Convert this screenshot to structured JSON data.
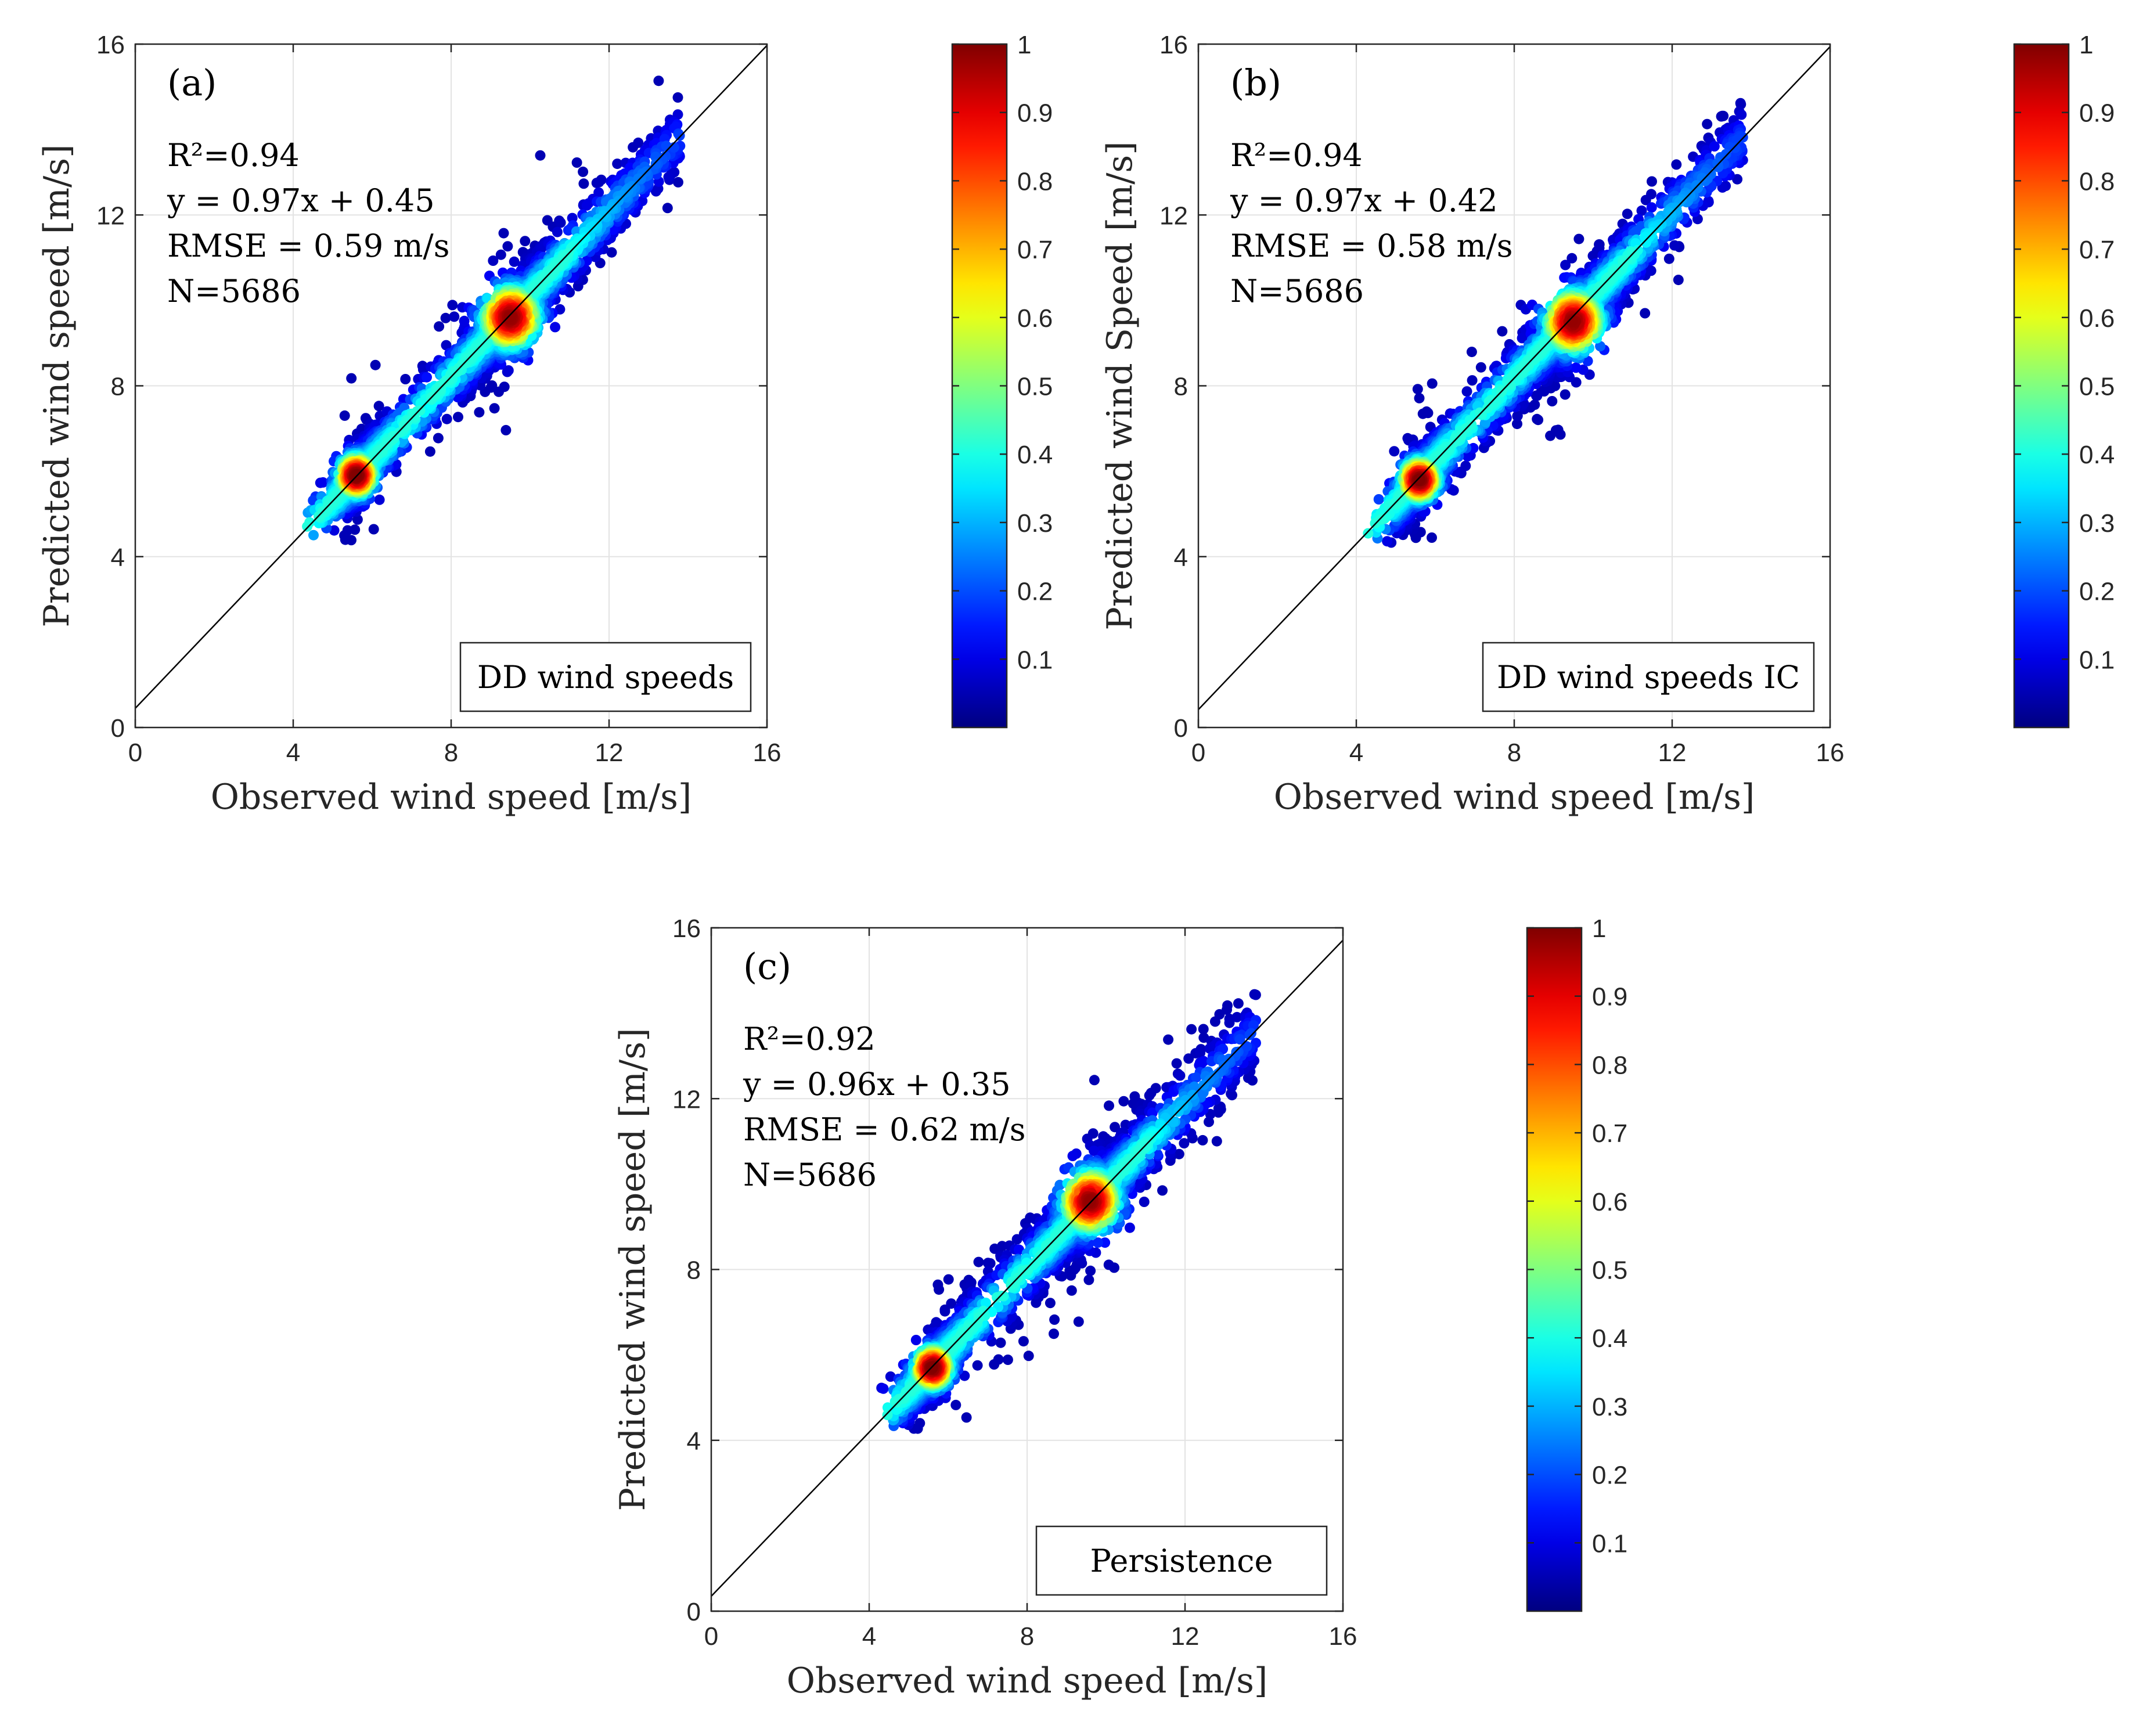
{
  "chart_data": [
    {
      "type": "scatter",
      "panel_label": "(a)",
      "xlabel": "Observed wind speed [m/s]",
      "ylabel": "Predicted wind speed [m/s]",
      "xlim": [
        0,
        16
      ],
      "ylim": [
        0,
        16
      ],
      "xticks": [
        "0",
        "4",
        "8",
        "12",
        "16"
      ],
      "yticks": [
        "0",
        "4",
        "8",
        "12",
        "16"
      ],
      "grid": true,
      "stats": [
        "R²=0.94",
        "y = 0.97x + 0.45",
        "RMSE = 0.59 m/s",
        "N=5686"
      ],
      "legend": "DD wind speeds",
      "legend_placement": "bottom-right",
      "fit": {
        "slope": 0.97,
        "intercept": 0.45
      },
      "n": 5686,
      "clusters": [
        {
          "center": [
            5.6,
            5.9
          ],
          "weight": 0.4
        },
        {
          "center": [
            9.5,
            9.6
          ],
          "weight": 0.45
        }
      ],
      "point_range_x": [
        4.2,
        15.3
      ],
      "colorbar": {
        "min": 0,
        "max": 1,
        "ticks": [
          "0.1",
          "0.2",
          "0.3",
          "0.4",
          "0.5",
          "0.6",
          "0.7",
          "0.8",
          "0.9",
          "1"
        ],
        "colormap": "jet"
      }
    },
    {
      "type": "scatter",
      "panel_label": "(b)",
      "xlabel": "Observed wind speed [m/s]",
      "ylabel": "Predicted wind Speed [m/s]",
      "xlim": [
        0,
        16
      ],
      "ylim": [
        0,
        16
      ],
      "xticks": [
        "0",
        "4",
        "8",
        "12",
        "16"
      ],
      "yticks": [
        "0",
        "4",
        "8",
        "12",
        "16"
      ],
      "grid": true,
      "stats": [
        "R²=0.94",
        "y = 0.97x + 0.42",
        "RMSE = 0.58 m/s",
        "N=5686"
      ],
      "legend": "DD wind speeds IC",
      "legend_placement": "bottom-right",
      "fit": {
        "slope": 0.97,
        "intercept": 0.42
      },
      "n": 5686,
      "clusters": [
        {
          "center": [
            5.6,
            5.8
          ],
          "weight": 0.4
        },
        {
          "center": [
            9.5,
            9.5
          ],
          "weight": 0.45
        }
      ],
      "point_range_x": [
        4.2,
        15.3
      ],
      "colorbar": {
        "min": 0,
        "max": 1,
        "ticks": [
          "0.1",
          "0.2",
          "0.3",
          "0.4",
          "0.5",
          "0.6",
          "0.7",
          "0.8",
          "0.9",
          "1"
        ],
        "colormap": "jet"
      }
    },
    {
      "type": "scatter",
      "panel_label": "(c)",
      "xlabel": "Observed wind speed [m/s]",
      "ylabel": "Predicted wind speed [m/s]",
      "xlim": [
        0,
        16
      ],
      "ylim": [
        0,
        16
      ],
      "xticks": [
        "0",
        "4",
        "8",
        "12",
        "16"
      ],
      "yticks": [
        "0",
        "4",
        "8",
        "12",
        "16"
      ],
      "grid": true,
      "stats": [
        "R²=0.92",
        "y = 0.96x + 0.35",
        "RMSE = 0.62 m/s",
        "N=5686"
      ],
      "legend": "Persistence",
      "legend_placement": "bottom-right",
      "fit": {
        "slope": 0.96,
        "intercept": 0.35
      },
      "n": 5686,
      "clusters": [
        {
          "center": [
            5.6,
            5.7
          ],
          "weight": 0.4
        },
        {
          "center": [
            9.6,
            9.6
          ],
          "weight": 0.45
        }
      ],
      "point_range_x": [
        4.2,
        15.3
      ],
      "colorbar": {
        "min": 0,
        "max": 1,
        "ticks": [
          "0.1",
          "0.2",
          "0.3",
          "0.4",
          "0.5",
          "0.6",
          "0.7",
          "0.8",
          "0.9",
          "1"
        ],
        "colormap": "jet"
      }
    }
  ]
}
